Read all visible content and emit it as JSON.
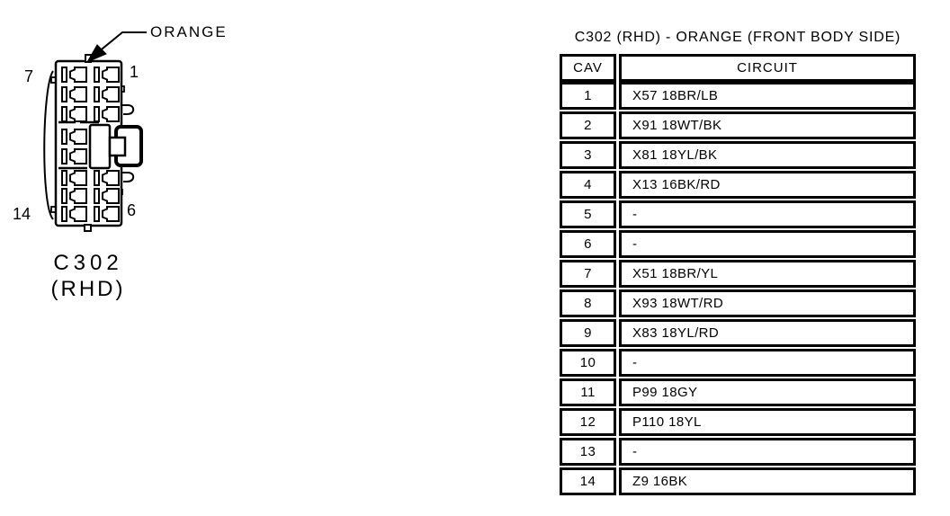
{
  "page": {
    "background": "#ffffff",
    "ink": "#000000"
  },
  "diagram": {
    "color_callout": "ORANGE",
    "connector_name": "C302",
    "connector_variant": "(RHD)",
    "pin_labels": {
      "top_left": "7",
      "top_right": "1",
      "bottom_left": "14",
      "bottom_right": "6"
    }
  },
  "table": {
    "title": "C302 (RHD) - ORANGE (FRONT BODY SIDE)",
    "columns": [
      "CAV",
      "CIRCUIT"
    ],
    "rows": [
      {
        "cav": "1",
        "circuit": "X57 18BR/LB"
      },
      {
        "cav": "2",
        "circuit": "X91 18WT/BK"
      },
      {
        "cav": "3",
        "circuit": "X81 18YL/BK"
      },
      {
        "cav": "4",
        "circuit": "X13 16BK/RD"
      },
      {
        "cav": "5",
        "circuit": "-"
      },
      {
        "cav": "6",
        "circuit": "-"
      },
      {
        "cav": "7",
        "circuit": "X51 18BR/YL"
      },
      {
        "cav": "8",
        "circuit": "X93 18WT/RD"
      },
      {
        "cav": "9",
        "circuit": "X83 18YL/RD"
      },
      {
        "cav": "10",
        "circuit": "-"
      },
      {
        "cav": "11",
        "circuit": "P99 18GY"
      },
      {
        "cav": "12",
        "circuit": "P110 18YL"
      },
      {
        "cav": "13",
        "circuit": "-"
      },
      {
        "cav": "14",
        "circuit": "Z9 16BK"
      }
    ]
  }
}
